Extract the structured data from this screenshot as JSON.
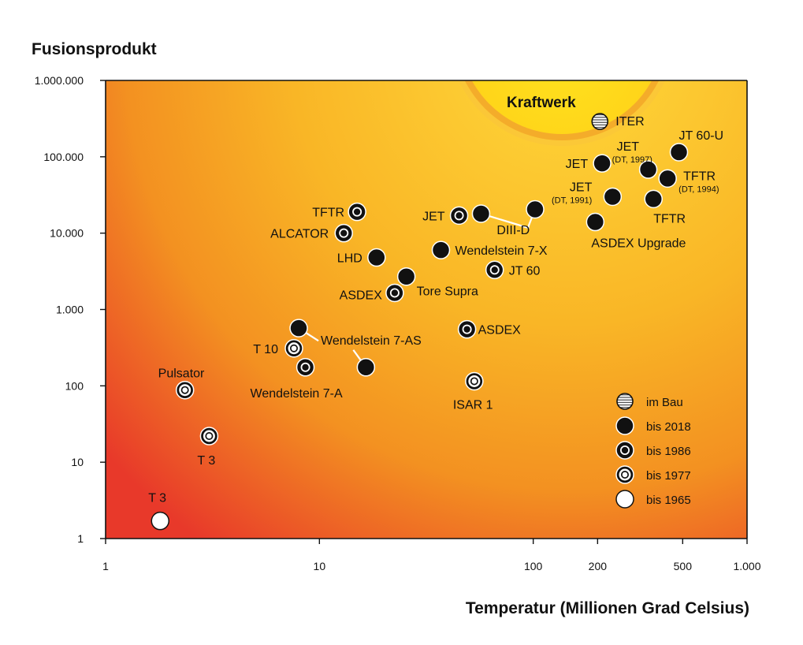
{
  "chart_data": {
    "type": "scatter",
    "xlabel": "Temperatur  (Millionen Grad Celsius)",
    "ylabel": "Fusionsprodukt",
    "xscale": "log",
    "yscale": "log",
    "xlim": [
      1,
      1000
    ],
    "ylim": [
      1,
      1000000
    ],
    "x_ticks": [
      {
        "value": 1,
        "label": "1"
      },
      {
        "value": 10,
        "label": "10"
      },
      {
        "value": 100,
        "label": "100"
      },
      {
        "value": 200,
        "label": "200"
      },
      {
        "value": 500,
        "label": "500"
      },
      {
        "value": 1000,
        "label": "1.000"
      }
    ],
    "y_ticks": [
      {
        "value": 1,
        "label": "1"
      },
      {
        "value": 10,
        "label": "10"
      },
      {
        "value": 100,
        "label": "100"
      },
      {
        "value": 1000,
        "label": "1.000"
      },
      {
        "value": 10000,
        "label": "10.000"
      },
      {
        "value": 100000,
        "label": "100.000"
      },
      {
        "value": 1000000,
        "label": "1.000.000"
      }
    ],
    "grid": false,
    "legend_position": "bottom-right",
    "region_label": "Kraftwerk",
    "colors": {
      "gradient_hot": "#e8392a",
      "gradient_mid": "#f6a21d",
      "gradient_cool": "#ffd93a",
      "kraftwerk_fill": "#ffdc1f",
      "kraftwerk_ring": "#f7b32c"
    },
    "categories": [
      {
        "key": "bau",
        "label": "im Bau"
      },
      {
        "key": "2018",
        "label": "bis 2018"
      },
      {
        "key": "1986",
        "label": "bis 1986"
      },
      {
        "key": "1977",
        "label": "bis 1977"
      },
      {
        "key": "1965",
        "label": "bis 1965"
      }
    ],
    "points": [
      {
        "label": "ITER",
        "sub": "",
        "x": 205,
        "y": 290000,
        "cat": "bau"
      },
      {
        "label": "JT 60-U",
        "sub": "",
        "x": 480,
        "y": 115000,
        "cat": "2018"
      },
      {
        "label": "JET",
        "sub": "(DT, 1997)",
        "x": 345,
        "y": 68000,
        "cat": "2018"
      },
      {
        "label": "JET",
        "sub": "",
        "x": 210,
        "y": 82000,
        "cat": "2018"
      },
      {
        "label": "TFTR",
        "sub": "(DT, 1994)",
        "x": 425,
        "y": 52000,
        "cat": "2018"
      },
      {
        "label": "JET",
        "sub": "(DT, 1991)",
        "x": 235,
        "y": 30000,
        "cat": "2018"
      },
      {
        "label": "TFTR",
        "sub": "",
        "x": 365,
        "y": 28000,
        "cat": "2018"
      },
      {
        "label": "ASDEX Upgrade",
        "sub": "",
        "x": 195,
        "y": 14000,
        "cat": "2018"
      },
      {
        "label": "DIII-D",
        "sub": "",
        "x": 57,
        "y": 18000,
        "cat": "2018"
      },
      {
        "label": "",
        "sub": "",
        "x": 102,
        "y": 20500,
        "cat": "2018"
      },
      {
        "label": "JET",
        "sub": "",
        "x": 45,
        "y": 17000,
        "cat": "1986"
      },
      {
        "label": "Wendelstein 7-X",
        "sub": "",
        "x": 37,
        "y": 6000,
        "cat": "2018"
      },
      {
        "label": "JT 60",
        "sub": "",
        "x": 66,
        "y": 3300,
        "cat": "1986"
      },
      {
        "label": "TFTR",
        "sub": "",
        "x": 15,
        "y": 19000,
        "cat": "1986"
      },
      {
        "label": "ALCATOR",
        "sub": "",
        "x": 13,
        "y": 10000,
        "cat": "1986"
      },
      {
        "label": "LHD",
        "sub": "",
        "x": 18.5,
        "y": 4800,
        "cat": "2018"
      },
      {
        "label": "Tore Supra",
        "sub": "",
        "x": 25.5,
        "y": 2700,
        "cat": "2018"
      },
      {
        "label": "ASDEX",
        "sub": "",
        "x": 22.5,
        "y": 1650,
        "cat": "1986"
      },
      {
        "label": "ASDEX",
        "sub": "",
        "x": 49,
        "y": 550,
        "cat": "1986"
      },
      {
        "label": "Wendelstein 7-AS",
        "sub": "",
        "x": 8,
        "y": 570,
        "cat": "2018"
      },
      {
        "label": "",
        "sub": "",
        "x": 16.5,
        "y": 175,
        "cat": "2018"
      },
      {
        "label": "T 10",
        "sub": "",
        "x": 7.6,
        "y": 310,
        "cat": "1977"
      },
      {
        "label": "Wendelstein 7-A",
        "sub": "",
        "x": 8.6,
        "y": 175,
        "cat": "1986"
      },
      {
        "label": "ISAR 1",
        "sub": "",
        "x": 53,
        "y": 115,
        "cat": "1977"
      },
      {
        "label": "Pulsator",
        "sub": "",
        "x": 2.35,
        "y": 88,
        "cat": "1977"
      },
      {
        "label": "T 3",
        "sub": "",
        "x": 3.05,
        "y": 22,
        "cat": "1977"
      },
      {
        "label": "T 3",
        "sub": "",
        "x": 1.8,
        "y": 1.7,
        "cat": "1965"
      }
    ]
  }
}
